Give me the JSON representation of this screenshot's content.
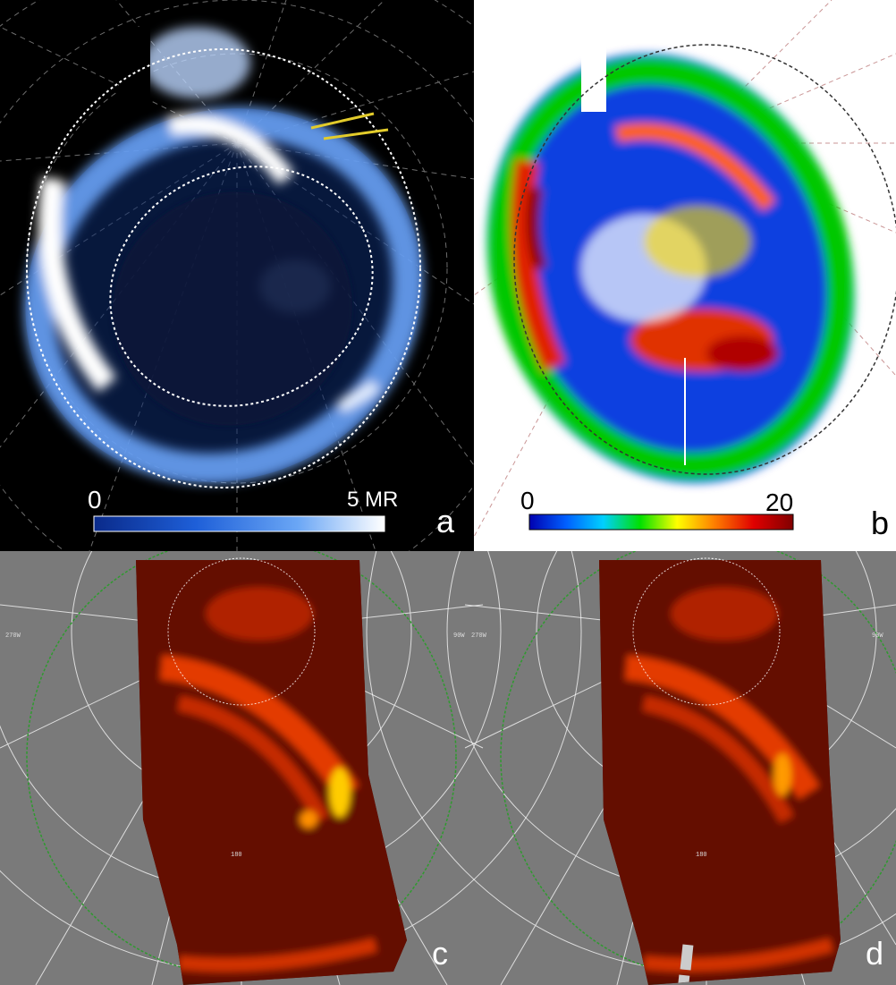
{
  "panels": {
    "a": {
      "label": "a",
      "colorbar": {
        "min_label": "0",
        "max_label": "5 MR",
        "colors": [
          "#0a2a8a",
          "#1e5fd8",
          "#6aa6f5",
          "#ffffff"
        ]
      },
      "palette": {
        "background": "#000000",
        "aurora": "#7fb6ff",
        "bright": "#ffffff",
        "marker": "#e3cc2b"
      }
    },
    "b": {
      "label": "b",
      "colorbar": {
        "min_label": "0",
        "max_label": "20",
        "colors": [
          "#0000b0",
          "#0060ff",
          "#00d0ff",
          "#00e000",
          "#ffff00",
          "#ff8000",
          "#e00000",
          "#800000"
        ]
      }
    },
    "c": {
      "label": "c",
      "grid_labels": [
        "270W",
        "90W",
        "180"
      ]
    },
    "d": {
      "label": "d",
      "grid_labels": [
        "270W",
        "90W",
        "180"
      ]
    }
  }
}
